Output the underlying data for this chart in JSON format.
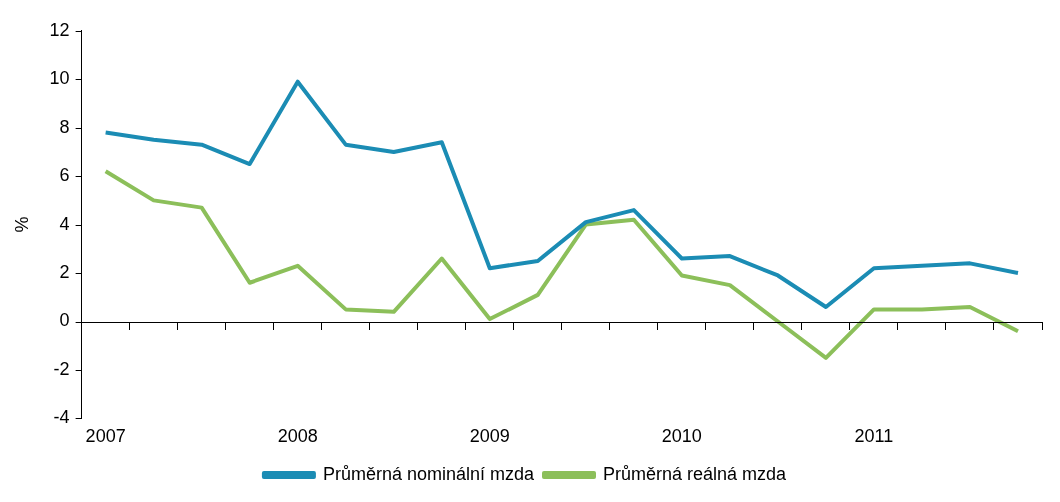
{
  "chart_data": {
    "type": "line",
    "ylabel": "%",
    "categories": [
      "2007",
      null,
      null,
      null,
      "2008",
      null,
      null,
      null,
      "2009",
      null,
      null,
      null,
      "2010",
      null,
      null,
      null,
      "2011",
      null,
      null,
      null
    ],
    "series": [
      {
        "name": "Průměrná nominální mzda",
        "color": "#1b8cb4",
        "values": [
          7.8,
          7.5,
          7.3,
          6.5,
          9.9,
          7.3,
          7.0,
          7.4,
          2.2,
          2.5,
          4.1,
          4.6,
          2.6,
          2.7,
          1.9,
          0.6,
          2.2,
          2.3,
          2.4,
          2.0
        ]
      },
      {
        "name": "Průměrná reálná mzda",
        "color": "#8cbf5a",
        "values": [
          6.2,
          5.0,
          4.7,
          1.6,
          2.3,
          0.5,
          0.4,
          2.6,
          0.1,
          1.1,
          4.0,
          4.2,
          1.9,
          1.5,
          0.0,
          -1.5,
          0.5,
          0.5,
          0.6,
          -0.4
        ]
      }
    ],
    "ylim": [
      -4,
      12
    ],
    "yticks": [
      -4,
      -2,
      0,
      2,
      4,
      6,
      8,
      10,
      12
    ],
    "ref_lines": [
      {
        "axis": "y",
        "value": 0,
        "color": "#000000",
        "line_style": "solid"
      }
    ],
    "grid": false,
    "legend": "bottom",
    "marker": "none",
    "line_style": "solid"
  }
}
